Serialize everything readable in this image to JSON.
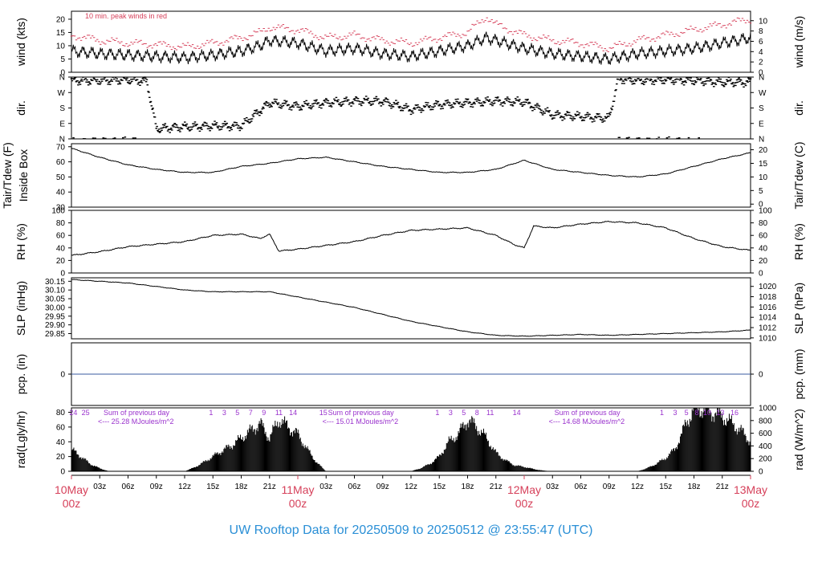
{
  "footer": {
    "title": "UW Rooftop Data for 20250509  to  20250512 @ 23:55:47  (UTC)"
  },
  "colors": {
    "accent": "#d6405a",
    "footer": "#2a8fd6",
    "solar": "#9a32cd",
    "pcp_line": "#3a5ba0",
    "data": "#000000"
  },
  "x_axis": {
    "range_hours": [
      0,
      72
    ],
    "ticks": [
      {
        "hour": 3,
        "label": "03z"
      },
      {
        "hour": 6,
        "label": "06z"
      },
      {
        "hour": 9,
        "label": "09z"
      },
      {
        "hour": 12,
        "label": "12z"
      },
      {
        "hour": 15,
        "label": "15z"
      },
      {
        "hour": 18,
        "label": "18z"
      },
      {
        "hour": 21,
        "label": "21z"
      },
      {
        "hour": 27,
        "label": "03z"
      },
      {
        "hour": 30,
        "label": "06z"
      },
      {
        "hour": 33,
        "label": "09z"
      },
      {
        "hour": 36,
        "label": "12z"
      },
      {
        "hour": 39,
        "label": "15z"
      },
      {
        "hour": 42,
        "label": "18z"
      },
      {
        "hour": 45,
        "label": "21z"
      },
      {
        "hour": 51,
        "label": "03z"
      },
      {
        "hour": 54,
        "label": "06z"
      },
      {
        "hour": 57,
        "label": "09z"
      },
      {
        "hour": 60,
        "label": "12z"
      },
      {
        "hour": 63,
        "label": "15z"
      },
      {
        "hour": 66,
        "label": "18z"
      },
      {
        "hour": 69,
        "label": "21z"
      }
    ],
    "day_labels": [
      {
        "hour": 0,
        "date": "10May",
        "time": "00z"
      },
      {
        "hour": 24,
        "date": "11May",
        "time": "00z"
      },
      {
        "hour": 48,
        "date": "12May",
        "time": "00z"
      },
      {
        "hour": 72,
        "date": "13May",
        "time": "00z"
      }
    ]
  },
  "chart_data": {
    "type": "line",
    "panels": [
      {
        "id": "wind",
        "ylabel_left": "wind (kts)",
        "ylabel_right": "wind (m/s)",
        "ylim": [
          0,
          23
        ],
        "left_ticks": [
          0,
          5,
          10,
          15,
          20
        ],
        "right_ticks": [
          0,
          2,
          4,
          6,
          8,
          10
        ],
        "right_scale": 0.5144,
        "annotation": "10 min. peak winds in red",
        "series": [
          {
            "x": [
              0,
              3,
              6,
              9,
              12,
              15,
              18,
              20,
              21,
              24,
              27,
              30,
              33,
              36,
              39,
              42,
              44,
              45,
              48,
              51,
              54,
              57,
              60,
              63,
              66,
              69,
              72
            ],
            "y": [
              8,
              7,
              6.5,
              6,
              5.5,
              6.5,
              8,
              10,
              12,
              11,
              8,
              9,
              7,
              6,
              8,
              10,
              13,
              12,
              9,
              7,
              6,
              5,
              7,
              8,
              9,
              11,
              13
            ]
          },
          {
            "x": [
              0,
              3,
              6,
              9,
              12,
              15,
              18,
              20,
              21,
              24,
              27,
              30,
              33,
              36,
              39,
              42,
              44,
              45,
              48,
              51,
              54,
              57,
              60,
              63,
              66,
              69,
              72
            ],
            "y": [
              14,
              12,
              11,
              10.5,
              9.5,
              11,
              13,
              15,
              17,
              16,
              13,
              14,
              12,
              11,
              13,
              15,
              21,
              18,
              14,
              12,
              11,
              9,
              12,
              14,
              16,
              18,
              20
            ]
          }
        ]
      },
      {
        "id": "dir",
        "ylabel_left": "dir.",
        "ylabel_right": "dir.",
        "ylim": [
          0,
          360
        ],
        "left_ticks": [
          0,
          90,
          180,
          270,
          360
        ],
        "left_tick_labels": [
          "N",
          "E",
          "S",
          "W",
          "N"
        ],
        "series": [
          {
            "x": [
              0,
              3,
              6,
              8,
              9,
              12,
              15,
              18,
              21,
              24,
              27,
              30,
              33,
              36,
              39,
              42,
              45,
              48,
              51,
              54,
              57,
              58,
              60,
              63,
              66,
              69,
              72
            ],
            "y": [
              340,
              340,
              345,
              335,
              60,
              70,
              75,
              75,
              210,
              190,
              210,
              220,
              220,
              170,
              200,
              210,
              220,
              215,
              140,
              130,
              120,
              350,
              340,
              345,
              340,
              330,
              330
            ]
          }
        ]
      },
      {
        "id": "temp",
        "ylabel_left": "Tair/Tdew (F)",
        "ylabel_left2": "Inside Box",
        "ylabel_right": "Tair/Tdew (C)",
        "ylim": [
          30,
          72
        ],
        "left_ticks": [
          30,
          40,
          50,
          60,
          70
        ],
        "right_ticks": [
          0,
          5,
          10,
          15,
          20
        ],
        "series": [
          {
            "x": [
              0,
              3,
              6,
              9,
              12,
              15,
              18,
              21,
              24,
              27,
              30,
              33,
              36,
              39,
              42,
              45,
              48,
              51,
              54,
              57,
              60,
              63,
              66,
              69,
              72
            ],
            "y": [
              69,
              63,
              58,
              55,
              53,
              53,
              57,
              59,
              62,
              63,
              60,
              57,
              55,
              53,
              53,
              55,
              61,
              55,
              53,
              51,
              50,
              52,
              57,
              62,
              66
            ]
          }
        ]
      },
      {
        "id": "rh",
        "ylabel_left": "RH (%)",
        "ylabel_right": "RH (%)",
        "ylim": [
          0,
          100
        ],
        "left_ticks": [
          0,
          20,
          40,
          60,
          80,
          100
        ],
        "right_ticks": [
          0,
          20,
          40,
          60,
          80,
          100
        ],
        "series": [
          {
            "x": [
              0,
              3,
              6,
              9,
              12,
              15,
              18,
              20,
              21,
              22,
              24,
              27,
              30,
              33,
              36,
              39,
              42,
              45,
              47,
              48,
              49,
              51,
              54,
              57,
              60,
              63,
              66,
              69,
              72
            ],
            "y": [
              28,
              34,
              42,
              46,
              50,
              60,
              62,
              55,
              62,
              35,
              38,
              44,
              50,
              60,
              68,
              70,
              72,
              60,
              45,
              40,
              75,
              72,
              78,
              82,
              80,
              72,
              55,
              42,
              36
            ]
          }
        ]
      },
      {
        "id": "slp",
        "ylabel_left": "SLP (inHg)",
        "ylabel_right": "SLP (hPa)",
        "ylim": [
          29.82,
          30.17
        ],
        "left_ticks": [
          29.85,
          29.9,
          29.95,
          30.0,
          30.05,
          30.1,
          30.15
        ],
        "left_tick_labels": [
          "29.85",
          "29.90",
          "29.95",
          "30.00",
          "30.05",
          "30.10",
          "30.15"
        ],
        "right_ticks": [
          1010,
          1012,
          1014,
          1016,
          1018,
          1020,
          1022
        ],
        "series": [
          {
            "x": [
              0,
              3,
              6,
              9,
              12,
              15,
              18,
              21,
              24,
              27,
              30,
              33,
              36,
              39,
              42,
              45,
              48,
              51,
              54,
              57,
              60,
              63,
              66,
              69,
              72
            ],
            "y": [
              30.16,
              30.15,
              30.14,
              30.12,
              30.1,
              30.09,
              30.09,
              30.09,
              30.06,
              30.03,
              30.0,
              29.96,
              29.92,
              29.89,
              29.86,
              29.84,
              29.835,
              29.84,
              29.845,
              29.84,
              29.845,
              29.85,
              29.855,
              29.86,
              29.87
            ]
          }
        ]
      },
      {
        "id": "pcp",
        "ylabel_left": "pcp. (in)",
        "ylabel_right": "pcp. (mm)",
        "ylim": [
          -1,
          1
        ],
        "left_ticks": [
          0
        ],
        "right_ticks": [
          0
        ],
        "series": [
          {
            "x": [
              0,
              72
            ],
            "y": [
              0,
              0
            ]
          }
        ]
      },
      {
        "id": "rad",
        "ylabel_left": "rad(Lgly/hr)",
        "ylabel_right": "rad (W/m^2)",
        "ylim": [
          0,
          86
        ],
        "left_ticks": [
          0,
          20,
          40,
          60,
          80
        ],
        "right_ticks": [
          0,
          200,
          400,
          600,
          800,
          1000
        ],
        "right_scale": 11.63,
        "series": [
          {
            "x": [
              0,
              1,
              2,
              3,
              4,
              12,
              13,
              14,
              15,
              16,
              17,
              18,
              19,
              20,
              21,
              22,
              23,
              24,
              25,
              26,
              27,
              36,
              37,
              38,
              39,
              40,
              41,
              42,
              43,
              44,
              45,
              46,
              47,
              48,
              49,
              50,
              51,
              60,
              61,
              62,
              63,
              64,
              65,
              66,
              67,
              68,
              69,
              70,
              71,
              72
            ],
            "y": [
              30,
              20,
              10,
              4,
              0,
              0,
              5,
              12,
              20,
              28,
              35,
              45,
              55,
              65,
              45,
              70,
              60,
              50,
              30,
              12,
              0,
              0,
              4,
              10,
              20,
              40,
              50,
              70,
              60,
              45,
              25,
              15,
              8,
              6,
              3,
              1,
              0,
              0,
              4,
              10,
              18,
              30,
              60,
              85,
              85,
              80,
              75,
              65,
              55,
              40
            ]
          }
        ],
        "day_hour_labels": [
          {
            "hour": 0.2,
            "text": "24"
          },
          {
            "hour": 1.5,
            "text": "25"
          },
          {
            "hour": 14.8,
            "text": "1"
          },
          {
            "hour": 16.2,
            "text": "3"
          },
          {
            "hour": 17.6,
            "text": "5"
          },
          {
            "hour": 19.0,
            "text": "7"
          },
          {
            "hour": 20.4,
            "text": "9"
          },
          {
            "hour": 22.0,
            "text": "11"
          },
          {
            "hour": 23.5,
            "text": "14"
          },
          {
            "hour": 26.7,
            "text": "15"
          },
          {
            "hour": 38.8,
            "text": "1"
          },
          {
            "hour": 40.2,
            "text": "3"
          },
          {
            "hour": 41.6,
            "text": "5"
          },
          {
            "hour": 43.0,
            "text": "8"
          },
          {
            "hour": 44.4,
            "text": "11"
          },
          {
            "hour": 47.2,
            "text": "14"
          },
          {
            "hour": 62.6,
            "text": "1"
          },
          {
            "hour": 64.0,
            "text": "3"
          },
          {
            "hour": 65.2,
            "text": "5"
          },
          {
            "hour": 66.3,
            "text": "8"
          },
          {
            "hour": 67.4,
            "text": "10"
          },
          {
            "hour": 68.8,
            "text": "13"
          },
          {
            "hour": 70.3,
            "text": "16"
          }
        ],
        "notes": [
          {
            "hour": 3.4,
            "line1": "Sum of previous day",
            "line2": "<--- 25.28 MJoules/m^2"
          },
          {
            "hour": 27.2,
            "line1": "Sum of previous day",
            "line2": "<--- 15.01 MJoules/m^2"
          },
          {
            "hour": 51.2,
            "line1": "Sum of previous day",
            "line2": "<--- 14.68 MJoules/m^2"
          }
        ]
      }
    ]
  }
}
